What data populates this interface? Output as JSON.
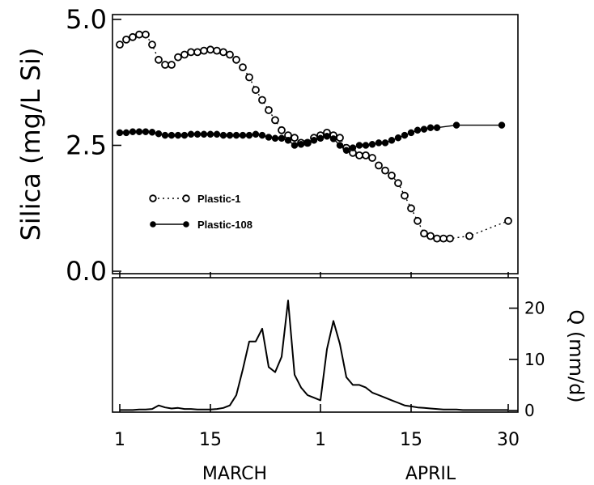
{
  "chart_data": [
    {
      "type": "scatter",
      "ylabel": "Silica (mg/L Si)",
      "ylim": [
        0.0,
        5.0
      ],
      "yticks": [
        "0.0",
        "2.5",
        "5.0"
      ],
      "xlim": [
        1,
        61
      ],
      "legend_position": "left-middle",
      "series": [
        {
          "name": "Plastic-1",
          "marker": "open-circle",
          "line": "dotted",
          "x": [
            1,
            2,
            3,
            4,
            5,
            6,
            7,
            8,
            9,
            10,
            11,
            12,
            13,
            14,
            15,
            16,
            17,
            18,
            19,
            20,
            21,
            22,
            23,
            24,
            25,
            26,
            27,
            28,
            29,
            30,
            31,
            32,
            33,
            34,
            35,
            36,
            37,
            38,
            39,
            40,
            41,
            42,
            43,
            44,
            45,
            46,
            47,
            48,
            49,
            50,
            51,
            52,
            55,
            61
          ],
          "y": [
            4.5,
            4.6,
            4.65,
            4.7,
            4.7,
            4.5,
            4.2,
            4.1,
            4.1,
            4.25,
            4.3,
            4.35,
            4.35,
            4.38,
            4.4,
            4.38,
            4.35,
            4.3,
            4.2,
            4.05,
            3.85,
            3.6,
            3.4,
            3.2,
            3.0,
            2.8,
            2.7,
            2.65,
            2.55,
            2.55,
            2.65,
            2.7,
            2.75,
            2.7,
            2.65,
            2.45,
            2.35,
            2.3,
            2.3,
            2.25,
            2.1,
            2.0,
            1.9,
            1.75,
            1.5,
            1.25,
            1.0,
            0.75,
            0.7,
            0.65,
            0.65,
            0.65,
            0.7,
            1.0
          ]
        },
        {
          "name": "Plastic-108",
          "marker": "filled-circle",
          "line": "solid",
          "x": [
            1,
            2,
            3,
            4,
            5,
            6,
            7,
            8,
            9,
            10,
            11,
            12,
            13,
            14,
            15,
            16,
            17,
            18,
            19,
            20,
            21,
            22,
            23,
            24,
            25,
            26,
            27,
            28,
            29,
            30,
            31,
            32,
            33,
            34,
            35,
            36,
            37,
            38,
            39,
            40,
            41,
            42,
            43,
            44,
            45,
            46,
            47,
            48,
            49,
            50,
            53,
            60
          ],
          "y": [
            2.75,
            2.75,
            2.77,
            2.77,
            2.77,
            2.76,
            2.73,
            2.7,
            2.7,
            2.7,
            2.7,
            2.72,
            2.72,
            2.72,
            2.72,
            2.72,
            2.7,
            2.7,
            2.7,
            2.7,
            2.7,
            2.72,
            2.7,
            2.66,
            2.64,
            2.64,
            2.6,
            2.5,
            2.52,
            2.55,
            2.6,
            2.64,
            2.68,
            2.63,
            2.5,
            2.4,
            2.45,
            2.5,
            2.5,
            2.52,
            2.55,
            2.55,
            2.6,
            2.65,
            2.7,
            2.75,
            2.8,
            2.82,
            2.85,
            2.85,
            2.9,
            2.9
          ]
        }
      ]
    },
    {
      "type": "line",
      "ylabel": "Q (mm/d)",
      "ylim": [
        0,
        25
      ],
      "yticks": [
        "0",
        "10",
        "20"
      ],
      "xlim": [
        1,
        61
      ],
      "xticks": [
        {
          "x": 1,
          "label": "1"
        },
        {
          "x": 15,
          "label": "15"
        },
        {
          "x": 32,
          "label": "1"
        },
        {
          "x": 46,
          "label": "15"
        },
        {
          "x": 61,
          "label": "30"
        }
      ],
      "xgroups": [
        "MARCH",
        "APRIL"
      ],
      "series": [
        {
          "x": [
            1,
            2,
            3,
            4,
            5,
            6,
            7,
            8,
            9,
            10,
            11,
            12,
            13,
            14,
            15,
            16,
            17,
            18,
            19,
            20,
            21,
            22,
            23,
            24,
            25,
            26,
            27,
            28,
            29,
            30,
            31,
            32,
            33,
            34,
            35,
            36,
            37,
            38,
            39,
            40,
            41,
            42,
            43,
            44,
            45,
            46,
            47,
            48,
            49,
            50,
            51,
            52,
            53,
            54,
            55,
            56,
            57,
            58,
            59,
            60,
            61
          ],
          "y": [
            0.1,
            0.1,
            0.1,
            0.2,
            0.2,
            0.3,
            1.0,
            0.6,
            0.4,
            0.5,
            0.3,
            0.3,
            0.2,
            0.2,
            0.2,
            0.3,
            0.5,
            1.0,
            3.0,
            8.0,
            13.5,
            13.5,
            16.0,
            8.5,
            7.5,
            10.5,
            21.5,
            7.0,
            4.5,
            3.0,
            2.5,
            2.0,
            12.0,
            17.5,
            13.0,
            6.5,
            5.0,
            5.0,
            4.5,
            3.5,
            3.0,
            2.5,
            2.0,
            1.5,
            1.0,
            0.8,
            0.6,
            0.5,
            0.4,
            0.3,
            0.2,
            0.2,
            0.2,
            0.1,
            0.1,
            0.1,
            0.1,
            0.1,
            0.1,
            0.1,
            0.1
          ]
        }
      ]
    }
  ]
}
